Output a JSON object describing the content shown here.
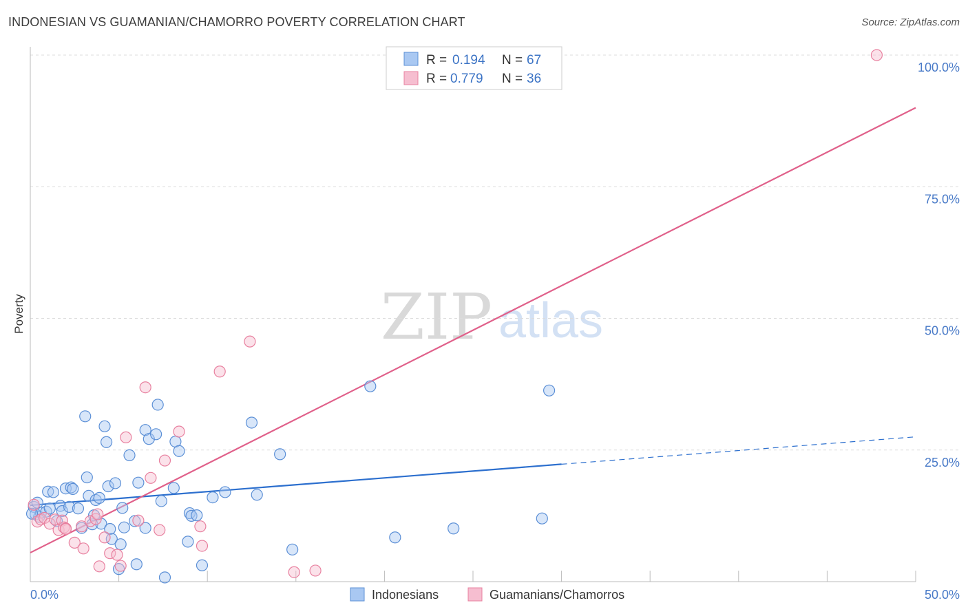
{
  "title": "INDONESIAN VS GUAMANIAN/CHAMORRO POVERTY CORRELATION CHART",
  "source": "Source: ZipAtlas.com",
  "watermark": {
    "zip": "ZIP",
    "atlas": "atlas"
  },
  "colors": {
    "indonesians_fill": "#a9c8f2",
    "indonesians_stroke": "#5b8fd6",
    "indonesians_line": "#2c6fce",
    "guam_fill": "#f6bed0",
    "guam_stroke": "#e8809f",
    "guam_line": "#e0608a",
    "axis_text": "#4a7bc8",
    "grid": "#dcdcdc"
  },
  "legend": {
    "rows": [
      {
        "r_label": "R =",
        "r_value": "0.194",
        "n_label": "N =",
        "n_value": "67"
      },
      {
        "r_label": "R =",
        "r_value": "0.779",
        "n_label": "N =",
        "n_value": "36"
      }
    ]
  },
  "chart_data": {
    "type": "scatter",
    "title": "INDONESIAN VS GUAMANIAN/CHAMORRO POVERTY CORRELATION CHART",
    "xlabel": "",
    "ylabel": "Poverty",
    "xlim": [
      0,
      50
    ],
    "ylim": [
      0,
      100
    ],
    "x_tick_labels": [
      "0.0%",
      "50.0%"
    ],
    "y_tick_labels": [
      "25.0%",
      "50.0%",
      "75.0%",
      "100.0%"
    ],
    "y_ticks": [
      25,
      50,
      75,
      100
    ],
    "series": [
      {
        "name": "Indonesians",
        "r": 0.194,
        "n": 67,
        "trend": {
          "x0": 0,
          "y0": 14.5,
          "x1": 30,
          "y1": 22.3,
          "x_dash_end": 50,
          "y_dash_end": 27.5
        },
        "points": [
          [
            0.2,
            14.2
          ],
          [
            0.3,
            12.8
          ],
          [
            0.5,
            12.3
          ],
          [
            0.6,
            13.1
          ],
          [
            0.9,
            13.3
          ],
          [
            1.0,
            17.1
          ],
          [
            1.1,
            13.9
          ],
          [
            1.3,
            17.0
          ],
          [
            1.5,
            11.5
          ],
          [
            1.7,
            14.4
          ],
          [
            1.8,
            13.4
          ],
          [
            2.0,
            17.7
          ],
          [
            2.2,
            14.2
          ],
          [
            2.3,
            17.9
          ],
          [
            2.4,
            17.6
          ],
          [
            2.7,
            13.9
          ],
          [
            2.9,
            10.2
          ],
          [
            3.2,
            19.8
          ],
          [
            3.1,
            31.4
          ],
          [
            3.3,
            16.3
          ],
          [
            3.5,
            10.9
          ],
          [
            3.6,
            12.6
          ],
          [
            3.7,
            15.5
          ],
          [
            3.9,
            15.9
          ],
          [
            4.0,
            11.0
          ],
          [
            4.2,
            29.5
          ],
          [
            4.3,
            26.5
          ],
          [
            4.4,
            18.1
          ],
          [
            4.5,
            10.0
          ],
          [
            4.6,
            8.1
          ],
          [
            4.8,
            18.7
          ],
          [
            5.0,
            2.4
          ],
          [
            5.1,
            7.1
          ],
          [
            5.2,
            14.0
          ],
          [
            5.3,
            10.3
          ],
          [
            5.6,
            24.0
          ],
          [
            5.9,
            11.5
          ],
          [
            6.0,
            3.3
          ],
          [
            6.1,
            18.8
          ],
          [
            6.5,
            28.8
          ],
          [
            6.5,
            10.2
          ],
          [
            6.7,
            27.1
          ],
          [
            7.1,
            28.0
          ],
          [
            7.2,
            33.6
          ],
          [
            7.4,
            15.3
          ],
          [
            7.6,
            0.8
          ],
          [
            8.1,
            17.8
          ],
          [
            8.2,
            26.6
          ],
          [
            8.4,
            24.8
          ],
          [
            8.9,
            7.6
          ],
          [
            9.0,
            13.0
          ],
          [
            9.1,
            12.5
          ],
          [
            9.4,
            12.6
          ],
          [
            9.7,
            3.1
          ],
          [
            10.3,
            16.0
          ],
          [
            11.0,
            17.0
          ],
          [
            12.5,
            30.2
          ],
          [
            12.8,
            16.5
          ],
          [
            14.1,
            24.2
          ],
          [
            14.8,
            6.1
          ],
          [
            19.2,
            37.1
          ],
          [
            20.6,
            8.4
          ],
          [
            23.9,
            10.1
          ],
          [
            28.9,
            12.0
          ],
          [
            29.3,
            36.3
          ],
          [
            0.1,
            12.9
          ],
          [
            0.4,
            15.0
          ]
        ]
      },
      {
        "name": "Guamanians/Chamorros",
        "r": 0.779,
        "n": 36,
        "trend": {
          "x0": 0,
          "y0": 5.5,
          "x1": 50,
          "y1": 90.0
        },
        "points": [
          [
            0.2,
            14.6
          ],
          [
            0.4,
            11.4
          ],
          [
            0.6,
            11.8
          ],
          [
            0.8,
            12.1
          ],
          [
            1.1,
            11.0
          ],
          [
            1.4,
            11.8
          ],
          [
            1.6,
            9.8
          ],
          [
            1.8,
            11.6
          ],
          [
            1.9,
            10.3
          ],
          [
            2.0,
            10.1
          ],
          [
            2.5,
            7.4
          ],
          [
            2.9,
            10.5
          ],
          [
            3.0,
            6.3
          ],
          [
            3.4,
            11.5
          ],
          [
            3.7,
            11.9
          ],
          [
            3.8,
            12.8
          ],
          [
            3.9,
            2.9
          ],
          [
            4.2,
            8.4
          ],
          [
            4.5,
            5.4
          ],
          [
            4.9,
            5.1
          ],
          [
            5.1,
            3.0
          ],
          [
            5.4,
            27.4
          ],
          [
            6.1,
            11.6
          ],
          [
            6.5,
            36.9
          ],
          [
            6.8,
            19.7
          ],
          [
            7.3,
            9.8
          ],
          [
            7.6,
            23.0
          ],
          [
            8.4,
            28.5
          ],
          [
            9.6,
            10.5
          ],
          [
            9.7,
            6.8
          ],
          [
            10.7,
            39.9
          ],
          [
            12.4,
            45.6
          ],
          [
            14.9,
            1.8
          ],
          [
            16.1,
            2.1
          ],
          [
            47.8,
            100.0
          ],
          [
            2.0,
            10.0
          ]
        ]
      }
    ]
  },
  "bottom_legend": {
    "items": [
      {
        "label": "Indonesians"
      },
      {
        "label": "Guamanians/Chamorros"
      }
    ]
  }
}
